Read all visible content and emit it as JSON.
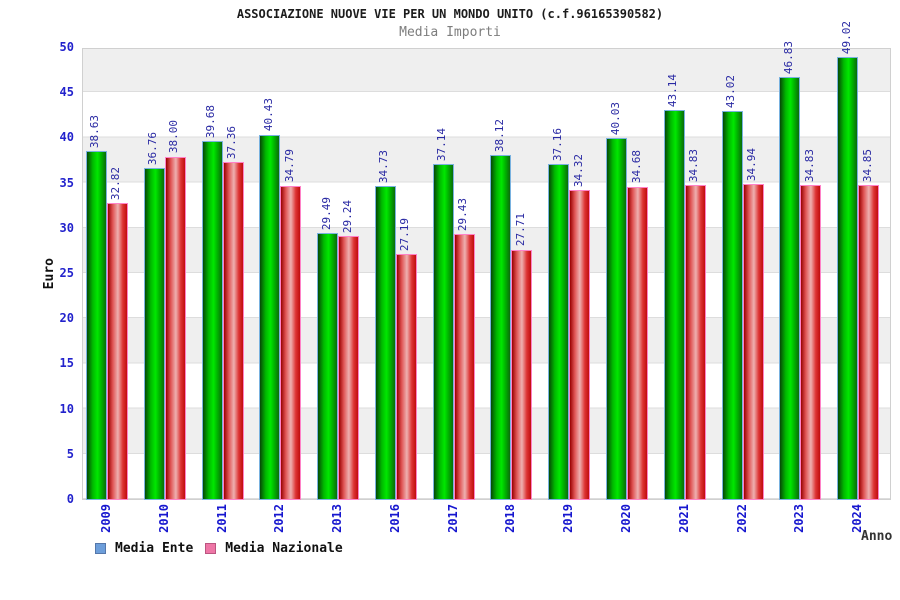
{
  "header": {
    "title": "ASSOCIAZIONE NUOVE VIE PER UN MONDO UNITO (c.f.96165390582)",
    "subtitle": "Media Importi"
  },
  "chart_data": {
    "type": "bar",
    "title": "ASSOCIAZIONE NUOVE VIE PER UN MONDO UNITO (c.f.96165390582)",
    "subtitle": "Media Importi",
    "xlabel": "Anno",
    "ylabel": "Euro",
    "ylim": [
      0,
      50
    ],
    "ytick_step": 5,
    "grid": "alternating horizontal bands every 5, light gray / white",
    "legend_position": "bottom-left",
    "value_label_format": "2 decimals, rotated 90deg above each bar",
    "categories": [
      "2009",
      "2010",
      "2011",
      "2012",
      "2013",
      "2016",
      "2017",
      "2018",
      "2019",
      "2020",
      "2021",
      "2022",
      "2023",
      "2024"
    ],
    "series": [
      {
        "name": "Media Ente",
        "values": [
          38.63,
          36.76,
          39.68,
          40.43,
          29.49,
          34.73,
          37.14,
          38.12,
          37.16,
          40.03,
          43.14,
          43.02,
          46.83,
          49.02
        ],
        "bar_fill": "green gradient cylinder",
        "bar_border": "#79b2e0",
        "legend_swatch_fill": "#6d9eda",
        "legend_swatch_border": "#5577aa"
      },
      {
        "name": "Media Nazionale",
        "values": [
          32.82,
          38.0,
          37.36,
          34.79,
          29.24,
          27.19,
          29.43,
          27.71,
          34.32,
          34.68,
          34.83,
          34.94,
          34.83,
          34.85
        ],
        "bar_fill": "red gradient cylinder with pink highlight",
        "bar_border": "#ff82c8",
        "legend_swatch_fill": "#ee76a6",
        "legend_swatch_border": "#bb5580"
      }
    ]
  },
  "colors": {
    "tick_label_blue": "#2222cc",
    "value_label_navy": "#2929a3",
    "band_gray": "#efefef",
    "plot_border": "#d0d0d0"
  }
}
